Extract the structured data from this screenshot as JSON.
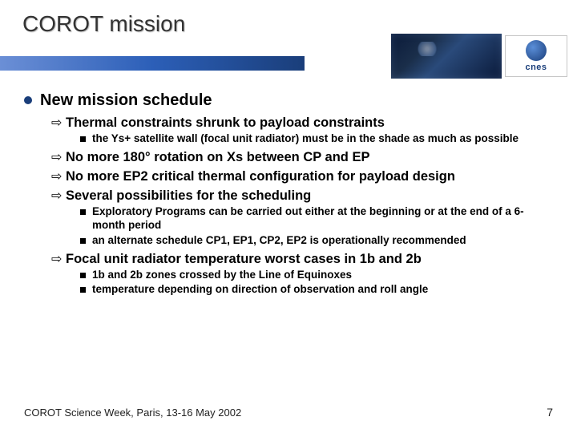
{
  "slide": {
    "title": "COROT mission",
    "logo_text": "cnes",
    "footer_left": "COROT Science Week, Paris, 13-16 May 2002",
    "page_number": "7"
  },
  "colors": {
    "title_text": "#333333",
    "bullet_dot": "#1a3e7a",
    "bar_gradient_start": "#6b8fd6",
    "bar_gradient_mid": "#2c5fb8",
    "bar_gradient_end": "#1a3e7a",
    "background": "#ffffff"
  },
  "content": {
    "heading": "New mission schedule",
    "items": [
      {
        "text": "Thermal constraints shrunk to payload constraints",
        "sub": [
          "the Ys+ satellite wall (focal unit radiator) must be in the shade as much as possible"
        ]
      },
      {
        "text": "No more 180° rotation on Xs between CP and EP",
        "sub": []
      },
      {
        "text": "No more EP2 critical thermal configuration for payload design",
        "sub": []
      },
      {
        "text": "Several possibilities for the scheduling",
        "sub": [
          "Exploratory Programs can be carried out either at the beginning or at the end of a 6-month period",
          "an alternate schedule CP1, EP1, CP2, EP2 is operationally recommended"
        ]
      },
      {
        "text": "Focal unit radiator temperature worst cases in 1b and 2b",
        "sub": [
          "1b and 2b zones crossed by the Line of Equinoxes",
          "temperature depending on direction of observation and roll angle"
        ]
      }
    ]
  }
}
